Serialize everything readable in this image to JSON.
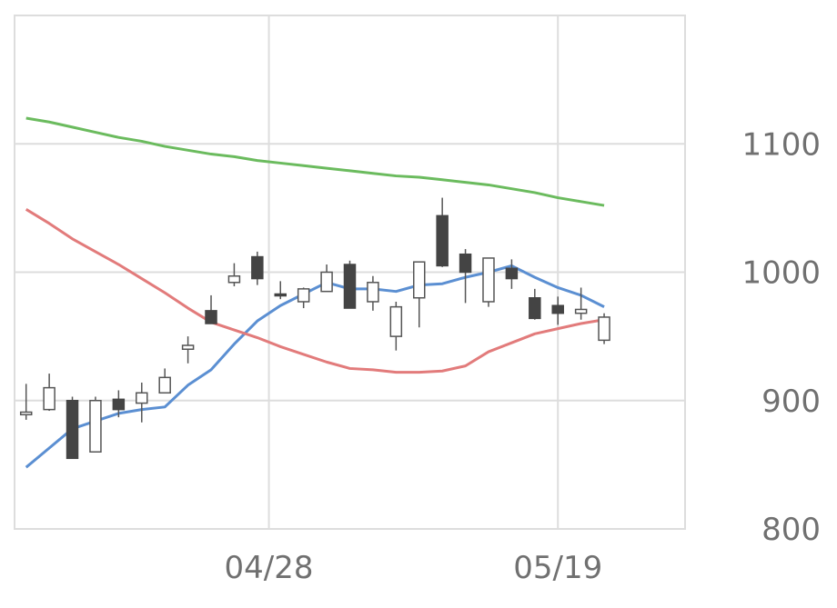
{
  "chart_data": {
    "type": "candlestick",
    "grid": true,
    "ylim": [
      800,
      1200
    ],
    "yticks": [
      800,
      900,
      1000,
      1100
    ],
    "xlim": [
      -0.5,
      28.5
    ],
    "xticks": [
      {
        "index": 10.5,
        "label": "04/28"
      },
      {
        "index": 23,
        "label": "05/19"
      }
    ],
    "candles": [
      {
        "o": 889,
        "h": 913,
        "l": 885,
        "c": 891
      },
      {
        "o": 893,
        "h": 921,
        "l": 892,
        "c": 910
      },
      {
        "o": 900,
        "h": 903,
        "l": 855,
        "c": 855
      },
      {
        "o": 860,
        "h": 903,
        "l": 860,
        "c": 900
      },
      {
        "o": 901,
        "h": 908,
        "l": 887,
        "c": 893
      },
      {
        "o": 898,
        "h": 914,
        "l": 883,
        "c": 906
      },
      {
        "o": 906,
        "h": 925,
        "l": 906,
        "c": 918
      },
      {
        "o": 940,
        "h": 950,
        "l": 929,
        "c": 943
      },
      {
        "o": 970,
        "h": 982,
        "l": 960,
        "c": 960
      },
      {
        "o": 992,
        "h": 1007,
        "l": 989,
        "c": 997
      },
      {
        "o": 1012,
        "h": 1016,
        "l": 990,
        "c": 995
      },
      {
        "o": 983,
        "h": 993,
        "l": 979,
        "c": 982
      },
      {
        "o": 977,
        "h": 988,
        "l": 972,
        "c": 987
      },
      {
        "o": 985,
        "h": 1006,
        "l": 985,
        "c": 1000
      },
      {
        "o": 1006,
        "h": 1009,
        "l": 972,
        "c": 972
      },
      {
        "o": 977,
        "h": 997,
        "l": 970,
        "c": 992
      },
      {
        "o": 950,
        "h": 977,
        "l": 939,
        "c": 973
      },
      {
        "o": 980,
        "h": 1008,
        "l": 957,
        "c": 1008
      },
      {
        "o": 1044,
        "h": 1058,
        "l": 1004,
        "c": 1005
      },
      {
        "o": 1014,
        "h": 1018,
        "l": 976,
        "c": 1000
      },
      {
        "o": 977,
        "h": 1011,
        "l": 973,
        "c": 1011
      },
      {
        "o": 1003,
        "h": 1010,
        "l": 987,
        "c": 995
      },
      {
        "o": 980,
        "h": 987,
        "l": 963,
        "c": 964
      },
      {
        "o": 974,
        "h": 981,
        "l": 959,
        "c": 968
      },
      {
        "o": 968,
        "h": 988,
        "l": 963,
        "c": 971
      },
      {
        "o": 947,
        "h": 968,
        "l": 944,
        "c": 965
      }
    ],
    "series": [
      {
        "color": "#5b8fd2",
        "values": [
          848,
          863,
          878,
          884,
          890,
          893,
          895,
          912,
          924,
          944,
          962,
          974,
          983,
          992,
          987,
          987,
          985,
          990,
          991,
          996,
          1000,
          1005,
          996,
          988,
          982,
          973
        ]
      },
      {
        "color": "#e27b7b",
        "values": [
          1049,
          1038,
          1026,
          1016,
          1006,
          995,
          984,
          972,
          961,
          955,
          949,
          942,
          936,
          930,
          925,
          924,
          922,
          922,
          923,
          927,
          938,
          945,
          952,
          956,
          960,
          963
        ]
      },
      {
        "color": "#6bbb5e",
        "values": [
          1120,
          1117,
          1113,
          1109,
          1105,
          1102,
          1098,
          1095,
          1092,
          1090,
          1087,
          1085,
          1083,
          1081,
          1079,
          1077,
          1075,
          1074,
          1072,
          1070,
          1068,
          1065,
          1062,
          1058,
          1055,
          1052
        ]
      }
    ],
    "candle_up_color": "#ffffff",
    "candle_down_color": "#444444",
    "grid_color": "#dddddd"
  }
}
